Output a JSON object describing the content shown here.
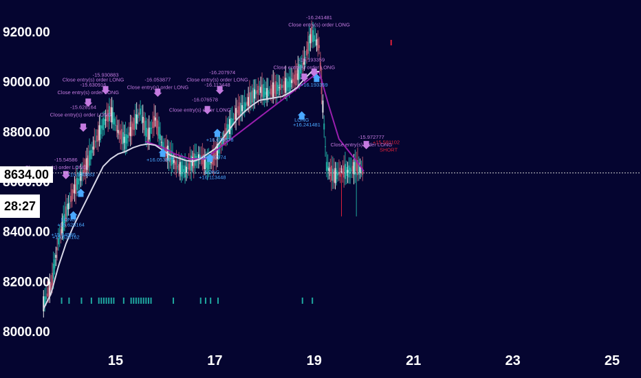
{
  "colors": {
    "background": "#050530",
    "candle_up": "#1fa8a0",
    "candle_down": "#b0506a",
    "candle_neutral": "#e8e8e8",
    "ma_white": "#d8d8e8",
    "ma_purple": "#9a1fae",
    "order_close": "#c47ae0",
    "order_long": "#4aa8ff",
    "red": "#e0203a",
    "price_line": "#cccccc"
  },
  "price_badge": {
    "value": "8634.00"
  },
  "countdown_badge": {
    "value": "28:27"
  },
  "chart_data": {
    "type": "line",
    "title": "",
    "ylim": [
      8000,
      9300
    ],
    "xlim": [
      13.5,
      25.3
    ],
    "y_ticks": [
      "8000.00",
      "8200.00",
      "8400.00",
      "8600.00",
      "8800.00",
      "9000.00",
      "9200.00"
    ],
    "x_ticks": [
      "15",
      "17",
      "19",
      "21",
      "23",
      "25"
    ],
    "current_price": 8634,
    "series": [
      {
        "role": "price",
        "x": [
          13.55,
          13.7,
          13.85,
          14.0,
          14.15,
          14.3,
          14.45,
          14.6,
          14.75,
          14.9,
          15.05,
          15.2,
          15.35,
          15.5,
          15.65,
          15.8,
          15.95,
          16.1,
          16.25,
          16.4,
          16.55,
          16.7,
          16.85,
          17.0,
          17.15,
          17.3,
          17.45,
          17.6,
          17.75,
          17.9,
          18.05,
          18.2,
          18.35,
          18.5,
          18.65,
          18.8,
          18.95,
          19.1,
          19.25,
          19.4,
          19.55,
          19.7,
          19.85,
          20.0
        ],
        "values": [
          8110,
          8180,
          8360,
          8470,
          8560,
          8620,
          8680,
          8760,
          8830,
          8880,
          8800,
          8760,
          8820,
          8880,
          8780,
          8850,
          8740,
          8700,
          8660,
          8640,
          8680,
          8700,
          8660,
          8700,
          8760,
          8820,
          8880,
          8900,
          8940,
          8970,
          8950,
          8970,
          8980,
          8990,
          9020,
          9080,
          9190,
          9140,
          8660,
          8620,
          8640,
          8640,
          8660,
          8634
        ]
      },
      {
        "role": "moving-average",
        "x": [
          13.55,
          13.7,
          13.85,
          14.0,
          14.15,
          14.3,
          14.45,
          14.6,
          14.75,
          14.9,
          15.05,
          15.2,
          15.35,
          15.5,
          15.65,
          15.8,
          15.95,
          16.1,
          16.25,
          16.4,
          16.55,
          16.7,
          16.85,
          17.0,
          17.15,
          17.3,
          17.45,
          17.6,
          17.75,
          17.9,
          18.05,
          18.2,
          18.35,
          18.5,
          18.65,
          18.8,
          18.95,
          19.1
        ],
        "values": [
          8090,
          8150,
          8260,
          8350,
          8420,
          8480,
          8540,
          8600,
          8660,
          8690,
          8710,
          8720,
          8735,
          8745,
          8750,
          8745,
          8725,
          8705,
          8695,
          8685,
          8680,
          8690,
          8710,
          8730,
          8770,
          8810,
          8850,
          8880,
          8905,
          8925,
          8930,
          8935,
          8940,
          8955,
          8975,
          9010,
          9040,
          9040
        ]
      },
      {
        "role": "moving-average-down",
        "x": [
          15.6,
          15.9,
          16.2,
          16.5,
          16.8,
          19.1,
          19.3,
          19.5,
          19.7,
          19.9,
          20.0
        ],
        "values": [
          8760,
          8740,
          8710,
          8690,
          8690,
          9040,
          8900,
          8770,
          8720,
          8670,
          8640
        ]
      }
    ],
    "annotations": [
      {
        "x": 14.8,
        "y": 9020,
        "text": "-15.930883",
        "kind": "close"
      },
      {
        "x": 14.55,
        "y": 9000,
        "text": "Close entry(s) order LONG",
        "kind": "close"
      },
      {
        "x": 14.55,
        "y": 8980,
        "text": "-15.630916",
        "kind": "close"
      },
      {
        "x": 14.45,
        "y": 8950,
        "text": "Close entry(s) order LONG",
        "kind": "close"
      },
      {
        "x": 14.35,
        "y": 8890,
        "text": "-15.628164",
        "kind": "close"
      },
      {
        "x": 14.3,
        "y": 8860,
        "text": "Close entry(s) order LONG",
        "kind": "close"
      },
      {
        "x": 14.0,
        "y": 8680,
        "text": "-15.54586",
        "kind": "close"
      },
      {
        "x": 13.8,
        "y": 8650,
        "text": "Close entry(s) order LONG",
        "kind": "close"
      },
      {
        "x": 15.85,
        "y": 9000,
        "text": "-16.053877",
        "kind": "close"
      },
      {
        "x": 15.85,
        "y": 8970,
        "text": "Close entry(s) order LONG",
        "kind": "close"
      },
      {
        "x": 17.15,
        "y": 9030,
        "text": "-16.207974",
        "kind": "close"
      },
      {
        "x": 17.05,
        "y": 9000,
        "text": "Close entry(s) order LONG",
        "kind": "close"
      },
      {
        "x": 17.05,
        "y": 8980,
        "text": "-16.113448",
        "kind": "close"
      },
      {
        "x": 16.8,
        "y": 8920,
        "text": "-16.076578",
        "kind": "close"
      },
      {
        "x": 16.7,
        "y": 8880,
        "text": "Close entry(s) order LONG",
        "kind": "close"
      },
      {
        "x": 19.1,
        "y": 9250,
        "text": "-16.241481",
        "kind": "close"
      },
      {
        "x": 19.1,
        "y": 9220,
        "text": "Close entry(s) order LONG",
        "kind": "close"
      },
      {
        "x": 18.95,
        "y": 9080,
        "text": "-16.193359",
        "kind": "close"
      },
      {
        "x": 18.8,
        "y": 9050,
        "text": "Close entry(s) order LONG",
        "kind": "close"
      },
      {
        "x": 20.15,
        "y": 8770,
        "text": "-15.972777",
        "kind": "close"
      },
      {
        "x": 19.95,
        "y": 8740,
        "text": "Close entry(s) order LONG",
        "kind": "close"
      },
      {
        "x": 14.3,
        "y": 8620,
        "text": "+15.930883",
        "kind": "long"
      },
      {
        "x": 14.05,
        "y": 8440,
        "text": "LONG",
        "kind": "long"
      },
      {
        "x": 14.1,
        "y": 8420,
        "text": "+15.628164",
        "kind": "long"
      },
      {
        "x": 13.95,
        "y": 8380,
        "text": "+15.54586",
        "kind": "long"
      },
      {
        "x": 14.0,
        "y": 8370,
        "text": "+15.628162",
        "kind": "long"
      },
      {
        "x": 15.9,
        "y": 8680,
        "text": "+16.053877",
        "kind": "long"
      },
      {
        "x": 17.1,
        "y": 8760,
        "text": "+16.076578",
        "kind": "long"
      },
      {
        "x": 16.95,
        "y": 8690,
        "text": "+16.207974",
        "kind": "long"
      },
      {
        "x": 16.95,
        "y": 8630,
        "text": "LONG",
        "kind": "long"
      },
      {
        "x": 16.95,
        "y": 8610,
        "text": "+16.113448",
        "kind": "long"
      },
      {
        "x": 18.75,
        "y": 8840,
        "text": "LONG",
        "kind": "long"
      },
      {
        "x": 18.85,
        "y": 8820,
        "text": "+16.241481",
        "kind": "long"
      },
      {
        "x": 19.0,
        "y": 8980,
        "text": "+16.193359",
        "kind": "long"
      },
      {
        "x": 20.45,
        "y": 8750,
        "text": "+15.581102",
        "kind": "red"
      },
      {
        "x": 20.5,
        "y": 8720,
        "text": "SHORT",
        "kind": "red"
      }
    ]
  }
}
